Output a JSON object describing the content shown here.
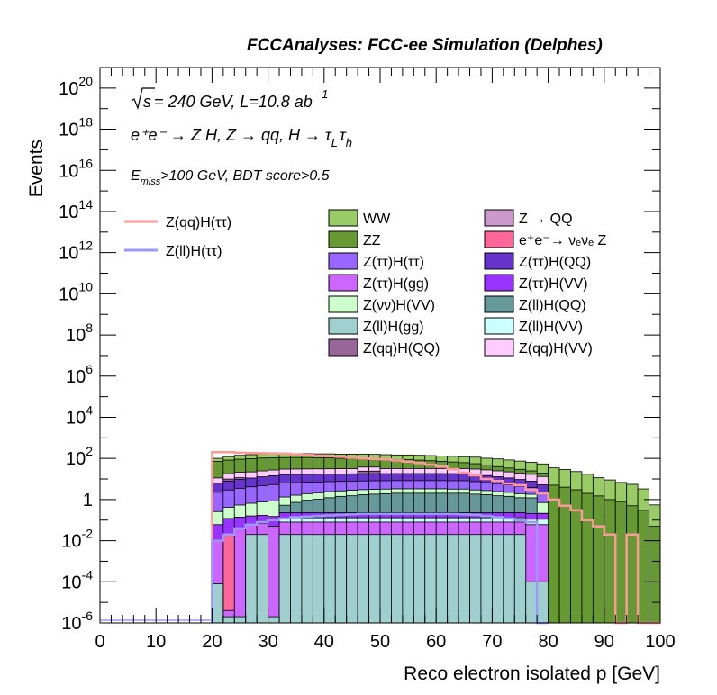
{
  "figure": {
    "header": "FCCAnalyses: FCC-ee Simulation (Delphes)",
    "annotations": {
      "sqrt_s": "s",
      "energy_lumi": " = 240 GeV, L=10.8 ab",
      "lumi_exp": "-1",
      "process": "e⁺e⁻ → Z H, Z → qq, H → τ",
      "process_sub1": "L",
      "process_tau2": "τ",
      "process_sub2": "h",
      "cut_E": "E",
      "cut_sub": "miss",
      "cut_rest": ">100 GeV, BDT score>0.5"
    }
  },
  "chart_data": {
    "type": "bar",
    "stacked": true,
    "log_y": true,
    "xlabel": "Reco electron isolated p [GeV]",
    "ylabel": "Events",
    "xlim": [
      0,
      100
    ],
    "ylim": [
      1e-06,
      1e+21
    ],
    "x_ticks": [
      "0",
      "10",
      "20",
      "30",
      "40",
      "50",
      "60",
      "70",
      "80",
      "90",
      "100"
    ],
    "y_ticks": [
      {
        "base": "10",
        "exp": "-6"
      },
      {
        "base": "10",
        "exp": "-4"
      },
      {
        "base": "10",
        "exp": "-2"
      },
      {
        "base": "1",
        "exp": ""
      },
      {
        "base": "10",
        "exp": "2"
      },
      {
        "base": "10",
        "exp": "4"
      },
      {
        "base": "10",
        "exp": "6"
      },
      {
        "base": "10",
        "exp": "8"
      },
      {
        "base": "10",
        "exp": "10"
      },
      {
        "base": "10",
        "exp": "12"
      },
      {
        "base": "10",
        "exp": "14"
      },
      {
        "base": "10",
        "exp": "16"
      },
      {
        "base": "10",
        "exp": "18"
      },
      {
        "base": "10",
        "exp": "20"
      }
    ],
    "bin_edges_start": 20,
    "bin_width": 2,
    "stacked_series": [
      {
        "name": "Z(ll)H(gg)",
        "color": "#9fcfcf",
        "values": [
          8e-05,
          2e-06,
          2e-06,
          0.02,
          0.02,
          2e-06,
          0.02,
          0.02,
          0.02,
          0.02,
          0.02,
          0.02,
          0.02,
          0.02,
          0.02,
          0.02,
          0.02,
          0.02,
          0.02,
          0.02,
          0.02,
          0.02,
          0.02,
          0.02,
          0.02,
          0.02,
          0.02,
          0.02,
          0.0001,
          0.0001,
          0,
          0,
          0,
          0,
          0,
          0,
          0,
          0,
          0,
          0
        ]
      },
      {
        "name": "Z(ττ)H(gg)",
        "color": "#cc66ff",
        "values": [
          0.01,
          2e-06,
          0.04,
          0.04,
          0.05,
          0.05,
          0.06,
          0.06,
          0.06,
          0.06,
          0.06,
          0.06,
          0.06,
          0.06,
          0.06,
          0.06,
          0.06,
          0.06,
          0.06,
          0.06,
          0.06,
          0.06,
          0.06,
          0.06,
          0.06,
          0.06,
          0.06,
          0.06,
          0.06,
          0.06,
          0,
          0,
          0,
          0,
          0,
          0,
          0,
          0,
          0,
          0
        ]
      },
      {
        "name": "e⁺e⁻→ νₑνₑ Z",
        "color": "#ff6699",
        "values": [
          0,
          0.02,
          0,
          0,
          0,
          0,
          0,
          0,
          0,
          0,
          0,
          0,
          0,
          0,
          0,
          0,
          0,
          0,
          0,
          0,
          0,
          0,
          0,
          0,
          0,
          0,
          0,
          0,
          0,
          0,
          0,
          0,
          0,
          0,
          0,
          0,
          0,
          0,
          0,
          0
        ]
      },
      {
        "name": "Z(ll)H(VV)",
        "color": "#ccffff",
        "values": [
          0,
          0,
          0,
          0,
          0,
          0,
          0.05,
          0.05,
          0.05,
          0.05,
          0.05,
          0.05,
          0.05,
          0.05,
          0.05,
          0.05,
          0.05,
          0.05,
          0.05,
          0.05,
          0.05,
          0.05,
          0.05,
          0.05,
          0.05,
          0.05,
          0.05,
          0.05,
          0.05,
          0.05,
          0,
          0,
          0,
          0,
          0,
          0,
          0,
          0,
          0,
          0
        ]
      },
      {
        "name": "Z(ττ)H(VV)",
        "color": "#9933ff",
        "values": [
          0.05,
          0.1,
          0.1,
          0.1,
          0.1,
          0.1,
          0.1,
          0.1,
          0.1,
          0.1,
          0.1,
          0.1,
          0.1,
          0.1,
          0.1,
          0.1,
          0.1,
          0.1,
          0.1,
          0.1,
          0.1,
          0.1,
          0.1,
          0.1,
          0.1,
          0.1,
          0.1,
          0.1,
          0.1,
          0.1,
          0,
          0,
          0,
          0,
          0,
          0,
          0,
          0,
          0,
          0
        ]
      },
      {
        "name": "Z(ll)H(QQ)",
        "color": "#669999",
        "values": [
          0,
          0,
          0,
          0,
          0,
          0,
          0.3,
          0.5,
          0.7,
          0.8,
          1,
          1.2,
          1.3,
          1.5,
          1.6,
          1.7,
          1.8,
          1.8,
          1.8,
          1.8,
          1.8,
          1.8,
          1.8,
          1.6,
          1.5,
          1.3,
          1.2,
          1,
          1,
          0.003,
          0,
          0,
          0,
          0,
          0,
          0,
          0,
          0,
          0,
          0
        ]
      },
      {
        "name": "Z(νν)H(VV)",
        "color": "#ccffcc",
        "values": [
          0.2,
          0.3,
          0.4,
          0.5,
          0.6,
          0.7,
          0.8,
          0.9,
          1.0,
          1.1,
          1.2,
          1.2,
          1.3,
          1.3,
          1.3,
          1.3,
          1.3,
          1.3,
          1.3,
          1.3,
          1.3,
          1.2,
          1.2,
          1.1,
          1.0,
          0.9,
          0.8,
          0.7,
          0.6,
          0.5,
          0,
          0,
          0,
          0,
          0,
          0,
          0,
          0,
          0,
          0
        ]
      },
      {
        "name": "Z(ττ)H(ττ)",
        "color": "#9966ff",
        "values": [
          2,
          2.5,
          3,
          3.5,
          4,
          4.5,
          5,
          5,
          5,
          5,
          5,
          5,
          5,
          5,
          5,
          5,
          5,
          5,
          5,
          5,
          5,
          5,
          5,
          4.5,
          4,
          3.5,
          3,
          2.5,
          2,
          1.5,
          0,
          0,
          0,
          0,
          0,
          0,
          0,
          0,
          0,
          0
        ]
      },
      {
        "name": "Z(ττ)H(QQ)",
        "color": "#6633cc",
        "values": [
          4,
          5,
          6,
          7,
          8,
          9,
          10,
          10,
          10,
          10,
          10,
          10,
          10,
          10,
          10,
          10,
          10,
          10,
          10,
          10,
          10,
          10,
          10,
          9,
          8,
          7,
          6,
          5,
          4,
          3,
          0,
          0,
          0,
          0,
          0,
          0,
          0,
          0,
          0,
          0
        ]
      },
      {
        "name": "Z(qq)H(QQ)",
        "color": "#996699",
        "values": [
          0,
          2,
          2,
          0,
          0,
          0,
          0,
          0,
          0,
          0,
          0,
          0,
          0,
          6,
          6,
          0,
          0,
          0,
          0,
          0,
          0,
          0,
          0,
          0,
          0,
          0,
          0,
          0,
          0,
          0,
          0,
          0,
          0,
          0,
          0,
          0,
          0,
          0,
          0,
          0
        ]
      },
      {
        "name": "Z(qq)H(VV)",
        "color": "#ffccff",
        "values": [
          5,
          8,
          10,
          11,
          12,
          13,
          14,
          14,
          14,
          14,
          14,
          14,
          14,
          14,
          14,
          14,
          14,
          14,
          14,
          14,
          14,
          14,
          14,
          14,
          13,
          12,
          11,
          10,
          9,
          8,
          0,
          0,
          0,
          0,
          0,
          0,
          0,
          0,
          0,
          0
        ]
      },
      {
        "name": "ZZ",
        "color": "#669933",
        "values": [
          60,
          65,
          70,
          75,
          80,
          80,
          80,
          80,
          80,
          75,
          75,
          70,
          70,
          65,
          60,
          60,
          55,
          55,
          50,
          45,
          40,
          35,
          30,
          25,
          20,
          15,
          12,
          10,
          8,
          6,
          5,
          4,
          3,
          2,
          1.5,
          1,
          0.8,
          0.5,
          0.3,
          0.05
        ]
      },
      {
        "name": "WW",
        "color": "#99cc66",
        "values": [
          30,
          40,
          50,
          55,
          60,
          60,
          60,
          60,
          60,
          60,
          60,
          60,
          60,
          60,
          60,
          60,
          60,
          60,
          60,
          60,
          60,
          60,
          60,
          60,
          55,
          55,
          50,
          45,
          40,
          35,
          30,
          25,
          20,
          15,
          10,
          8,
          6,
          5,
          3,
          0.5
        ]
      },
      {
        "name": "Z → QQ",
        "color": "#cc99cc",
        "values": [
          0,
          0,
          0,
          0,
          0,
          0,
          0,
          0,
          0,
          0,
          0,
          0,
          0,
          0,
          0,
          0,
          0,
          0,
          0,
          0,
          0,
          0,
          0,
          0,
          0,
          0,
          0,
          0,
          0,
          0,
          0,
          0,
          0,
          0,
          0,
          0,
          0,
          0,
          0,
          0
        ]
      }
    ],
    "line_series": [
      {
        "name": "Z(qq)H(ττ)",
        "color": "#ff9999",
        "values": [
          200,
          200,
          190,
          185,
          180,
          175,
          170,
          160,
          150,
          140,
          130,
          120,
          110,
          100,
          95,
          90,
          80,
          70,
          60,
          50,
          40,
          30,
          20,
          15,
          10,
          8,
          6,
          5,
          3,
          2,
          1,
          0.5,
          0.3,
          0.1,
          0.05,
          0.02,
          1e-06,
          0.02,
          1e-06,
          1e-06
        ]
      },
      {
        "name": "Z(ll)H(ττ)",
        "color": "#9999ff",
        "values": [
          0.01,
          0.02,
          0.04,
          0.06,
          0.08,
          0.1,
          0.12,
          0.14,
          0.15,
          0.16,
          0.17,
          0.18,
          0.19,
          0.2,
          0.2,
          0.2,
          0.2,
          0.2,
          0.2,
          0.2,
          0.2,
          0.2,
          0.19,
          0.18,
          0.16,
          0.14,
          0.12,
          0.1,
          0.08,
          1e-06,
          0,
          0,
          0,
          0,
          0,
          0,
          0,
          0,
          0,
          0
        ]
      }
    ],
    "legend": {
      "lines": [
        {
          "label": "Z(qq)H(ττ)",
          "color": "#ff9999"
        },
        {
          "label": "Z(ll)H(ττ)",
          "color": "#9999ff"
        }
      ],
      "boxes": [
        {
          "label": "WW",
          "color": "#99cc66"
        },
        {
          "label": "Z → QQ",
          "color": "#cc99cc"
        },
        {
          "label": "ZZ",
          "color": "#669933"
        },
        {
          "label": "e⁺e⁻→ νₑνₑ Z",
          "color": "#ff6699"
        },
        {
          "label": "Z(ττ)H(ττ)",
          "color": "#9966ff"
        },
        {
          "label": "Z(ττ)H(QQ)",
          "color": "#6633cc"
        },
        {
          "label": "Z(ττ)H(gg)",
          "color": "#cc66ff"
        },
        {
          "label": "Z(ττ)H(VV)",
          "color": "#9933ff"
        },
        {
          "label": "Z(νν)H(VV)",
          "color": "#ccffcc"
        },
        {
          "label": "Z(ll)H(QQ)",
          "color": "#669999"
        },
        {
          "label": "Z(ll)H(gg)",
          "color": "#9fcfcf"
        },
        {
          "label": "Z(ll)H(VV)",
          "color": "#ccffff"
        },
        {
          "label": "Z(qq)H(QQ)",
          "color": "#996699"
        },
        {
          "label": "Z(qq)H(VV)",
          "color": "#ffccff"
        }
      ]
    }
  }
}
